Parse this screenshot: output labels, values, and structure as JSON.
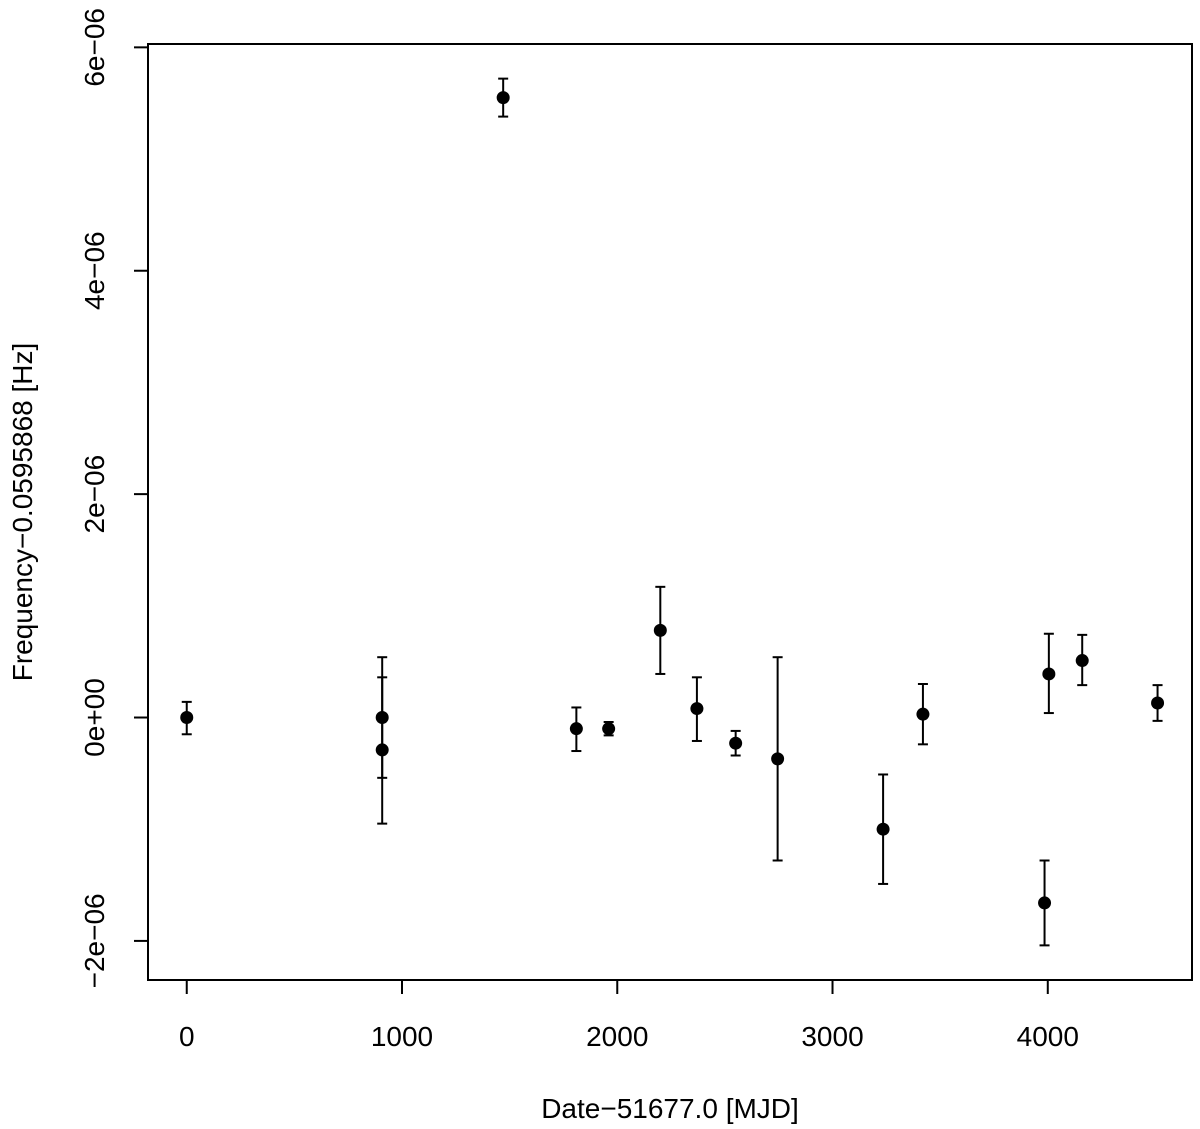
{
  "chart_data": {
    "type": "scatter",
    "title": "",
    "xlabel": "Date−51677.0 [MJD]",
    "ylabel": "Frequency−0.0595868 [Hz]",
    "xlim": [
      -180,
      4670
    ],
    "ylim": [
      -2.35e-06,
      6.03e-06
    ],
    "x_ticks": [
      0,
      1000,
      2000,
      3000,
      4000
    ],
    "x_tick_labels": [
      "0",
      "1000",
      "2000",
      "3000",
      "4000"
    ],
    "y_ticks": [
      -2e-06,
      0,
      2e-06,
      4e-06,
      6e-06
    ],
    "y_tick_labels": [
      "−2e−06",
      "0e+00",
      "2e−06",
      "4e−06",
      "6e−06"
    ],
    "grid": false,
    "legend": "none",
    "marker_color": "#000000",
    "points": [
      {
        "x": 0,
        "y": 0,
        "y_low": -1.5e-07,
        "y_high": 1.4e-07
      },
      {
        "x": 908,
        "y": 0,
        "y_low": -5.4e-07,
        "y_high": 5.4e-07
      },
      {
        "x": 908,
        "y": -2.9e-07,
        "y_low": -9.5e-07,
        "y_high": 3.6e-07
      },
      {
        "x": 1470,
        "y": 5.55e-06,
        "y_low": 5.38e-06,
        "y_high": 5.72e-06
      },
      {
        "x": 1810,
        "y": -1e-07,
        "y_low": -3e-07,
        "y_high": 9e-08
      },
      {
        "x": 1960,
        "y": -1e-07,
        "y_low": -1.6e-07,
        "y_high": -4e-08
      },
      {
        "x": 2200,
        "y": 7.8e-07,
        "y_low": 3.9e-07,
        "y_high": 1.17e-06
      },
      {
        "x": 2370,
        "y": 8e-08,
        "y_low": -2.1e-07,
        "y_high": 3.6e-07
      },
      {
        "x": 2550,
        "y": -2.3e-07,
        "y_low": -3.4e-07,
        "y_high": -1.2e-07
      },
      {
        "x": 2745,
        "y": -3.7e-07,
        "y_low": -1.28e-06,
        "y_high": 5.4e-07
      },
      {
        "x": 3235,
        "y": -1e-06,
        "y_low": -1.49e-06,
        "y_high": -5.1e-07
      },
      {
        "x": 3420,
        "y": 3e-08,
        "y_low": -2.4e-07,
        "y_high": 3e-07
      },
      {
        "x": 3985,
        "y": -1.66e-06,
        "y_low": -2.04e-06,
        "y_high": -1.28e-06
      },
      {
        "x": 4005,
        "y": 3.9e-07,
        "y_low": 4e-08,
        "y_high": 7.5e-07
      },
      {
        "x": 4160,
        "y": 5.1e-07,
        "y_low": 2.9e-07,
        "y_high": 7.4e-07
      },
      {
        "x": 4510,
        "y": 1.3e-07,
        "y_low": -3e-08,
        "y_high": 2.9e-07
      }
    ]
  }
}
